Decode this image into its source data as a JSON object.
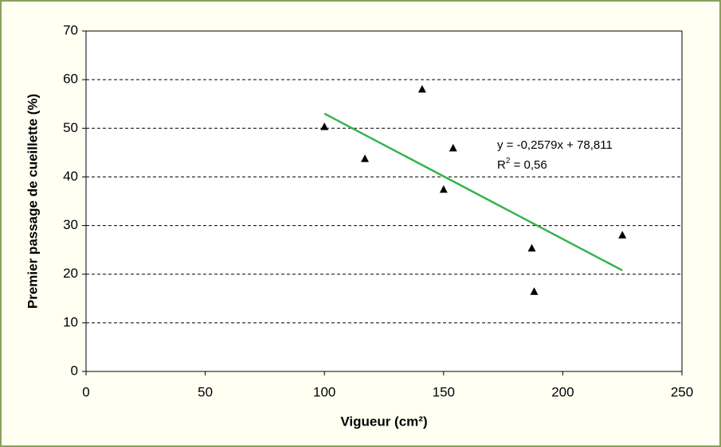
{
  "chart_data": {
    "type": "scatter",
    "x_label": "Vigueur (cm²)",
    "y_label": "Premier passage de cueillette (%)",
    "series": [
      {
        "name": "Premier passage",
        "color": "#000000",
        "x": [
          100,
          117,
          141,
          150,
          154,
          187,
          188,
          225
        ],
        "values": [
          50.3,
          43.7,
          58,
          37.4,
          45.9,
          25.3,
          16.4,
          28
        ]
      }
    ],
    "trendline": {
      "color": "#33b34a",
      "x": [
        100,
        225
      ],
      "values": [
        53.02,
        20.78
      ],
      "equation": "y = -0,2579x + 78,811",
      "r2": {
        "prefix": "R",
        "sup": "2",
        "suffix": " = 0,56"
      }
    },
    "xlim": [
      0,
      250
    ],
    "xticks": [
      0,
      50,
      100,
      150,
      200,
      250
    ],
    "ylim": [
      0,
      70
    ],
    "yticks": [
      0,
      10,
      20,
      30,
      40,
      50,
      60,
      70
    ],
    "grid": true
  }
}
